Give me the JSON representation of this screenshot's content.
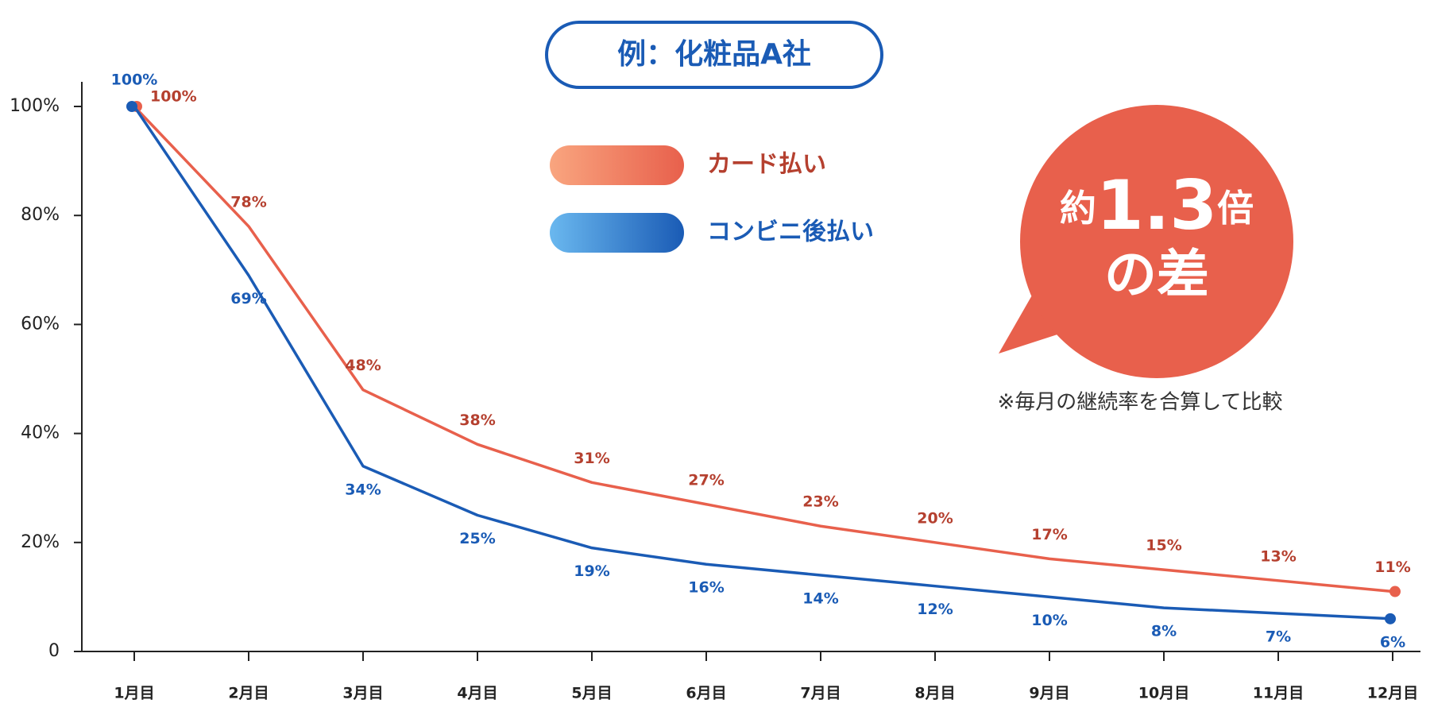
{
  "chart_data": {
    "type": "line",
    "title": "例：化粧品A社",
    "categories": [
      "1月目",
      "2月目",
      "3月目",
      "4月目",
      "5月目",
      "6月目",
      "7月目",
      "8月目",
      "9月目",
      "10月目",
      "11月目",
      "12月目"
    ],
    "series": [
      {
        "name": "カード払い",
        "color": "#e8604c",
        "label_color": "#b5402f",
        "gradient": [
          "#f9a57f",
          "#e8604c"
        ],
        "values": [
          100,
          78,
          48,
          38,
          31,
          27,
          23,
          20,
          17,
          15,
          13,
          11
        ],
        "value_labels": [
          "100%",
          "78%",
          "48%",
          "38%",
          "31%",
          "27%",
          "23%",
          "20%",
          "17%",
          "15%",
          "13%",
          "11%"
        ]
      },
      {
        "name": "コンビニ後払い",
        "color": "#1a5bb5",
        "label_color": "#1a5bb5",
        "gradient": [
          "#6ab8ef",
          "#1a5bb5"
        ],
        "values": [
          100,
          69,
          34,
          25,
          19,
          16,
          14,
          12,
          10,
          8,
          7,
          6
        ],
        "value_labels": [
          "100%",
          "69%",
          "34%",
          "25%",
          "19%",
          "16%",
          "14%",
          "12%",
          "10%",
          "8%",
          "7%",
          "6%"
        ]
      }
    ],
    "ylim": [
      0,
      100
    ],
    "yticks": [
      0,
      {
        "value": 20,
        "label": "20%"
      },
      {
        "value": 40,
        "label": "40%"
      },
      {
        "value": 60,
        "label": "60%"
      },
      {
        "value": 80,
        "label": "80%"
      },
      {
        "value": 100,
        "label": "100%"
      }
    ],
    "grid": false,
    "badge": {
      "prefix": "約",
      "number": "1.3",
      "suffix": "倍",
      "line2": "の差",
      "color": "#e8604c"
    },
    "note": "※毎月の継続率を合算して比較"
  }
}
